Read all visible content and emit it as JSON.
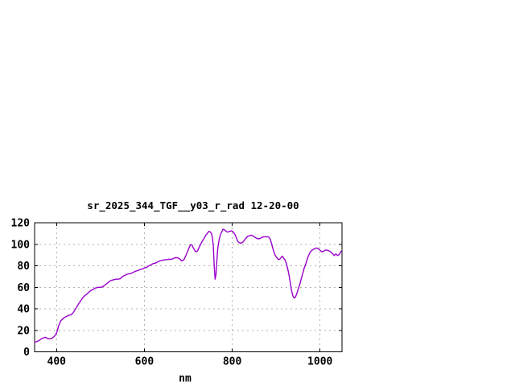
{
  "page": {
    "background": "#ffffff"
  },
  "chart_data": {
    "type": "line",
    "title": "sr_2025_344_TGF__y03_r_rad 12-20-00",
    "xlabel": "nm",
    "ylabel": "",
    "xlim": [
      350,
      1050
    ],
    "ylim": [
      0,
      120
    ],
    "x_ticks": [
      400,
      600,
      800,
      1000
    ],
    "y_ticks": [
      0,
      20,
      40,
      60,
      80,
      100,
      120
    ],
    "grid": true,
    "legend_position": "none",
    "colors": {
      "line": "#9a00cd",
      "grid": "#b0b0b0",
      "axis": "#000000",
      "text": "#000000",
      "background": "#ffffff"
    },
    "series": [
      {
        "name": "sr_2025_344_TGF__y03_r_rad",
        "points": [
          [
            350,
            9
          ],
          [
            355,
            9.5
          ],
          [
            360,
            10.5
          ],
          [
            365,
            12
          ],
          [
            370,
            13
          ],
          [
            375,
            13.5
          ],
          [
            379,
            12.5
          ],
          [
            384,
            12
          ],
          [
            389,
            12.5
          ],
          [
            394,
            14
          ],
          [
            398,
            16
          ],
          [
            401,
            18.5
          ],
          [
            404,
            23
          ],
          [
            407,
            26.5
          ],
          [
            410,
            29
          ],
          [
            414,
            30.5
          ],
          [
            418,
            32
          ],
          [
            423,
            33
          ],
          [
            428,
            34
          ],
          [
            433,
            34.5
          ],
          [
            437,
            36
          ],
          [
            441,
            38.5
          ],
          [
            445,
            41
          ],
          [
            450,
            44.5
          ],
          [
            455,
            47.5
          ],
          [
            460,
            50.5
          ],
          [
            465,
            52.5
          ],
          [
            470,
            54
          ],
          [
            475,
            56
          ],
          [
            480,
            57.5
          ],
          [
            485,
            58.5
          ],
          [
            490,
            59.5
          ],
          [
            495,
            60
          ],
          [
            500,
            60
          ],
          [
            505,
            60.5
          ],
          [
            510,
            62
          ],
          [
            515,
            63.5
          ],
          [
            520,
            65.5
          ],
          [
            525,
            66.5
          ],
          [
            530,
            67
          ],
          [
            535,
            67.5
          ],
          [
            540,
            67.5
          ],
          [
            545,
            68
          ],
          [
            550,
            70
          ],
          [
            555,
            71
          ],
          [
            560,
            72
          ],
          [
            565,
            72.5
          ],
          [
            570,
            73
          ],
          [
            575,
            74
          ],
          [
            580,
            75
          ],
          [
            585,
            75.5
          ],
          [
            590,
            76.5
          ],
          [
            595,
            77
          ],
          [
            600,
            78
          ],
          [
            605,
            78.5
          ],
          [
            610,
            80
          ],
          [
            615,
            81
          ],
          [
            620,
            82
          ],
          [
            625,
            82.5
          ],
          [
            630,
            83.5
          ],
          [
            635,
            84.5
          ],
          [
            640,
            85
          ],
          [
            645,
            85.5
          ],
          [
            650,
            85.5
          ],
          [
            655,
            86
          ],
          [
            660,
            86
          ],
          [
            665,
            86.5
          ],
          [
            670,
            87.5
          ],
          [
            675,
            87.5
          ],
          [
            680,
            86.5
          ],
          [
            685,
            84.5
          ],
          [
            690,
            85.5
          ],
          [
            694,
            89
          ],
          [
            698,
            93
          ],
          [
            702,
            97
          ],
          [
            705,
            99.5
          ],
          [
            708,
            99.5
          ],
          [
            711,
            97
          ],
          [
            715,
            94
          ],
          [
            718,
            93
          ],
          [
            721,
            94
          ],
          [
            724,
            96.5
          ],
          [
            728,
            100
          ],
          [
            732,
            103
          ],
          [
            736,
            105.5
          ],
          [
            740,
            108.5
          ],
          [
            744,
            110.5
          ],
          [
            747,
            112
          ],
          [
            750,
            111.5
          ],
          [
            753,
            110
          ],
          [
            755,
            106
          ],
          [
            757,
            98
          ],
          [
            759,
            80
          ],
          [
            761,
            67.5
          ],
          [
            763,
            72
          ],
          [
            765,
            85
          ],
          [
            767,
            96
          ],
          [
            770,
            104
          ],
          [
            773,
            108.5
          ],
          [
            776,
            111.5
          ],
          [
            779,
            114
          ],
          [
            782,
            113.5
          ],
          [
            785,
            112.5
          ],
          [
            788,
            111.5
          ],
          [
            791,
            111.5
          ],
          [
            794,
            112
          ],
          [
            798,
            112.5
          ],
          [
            801,
            112
          ],
          [
            804,
            110.5
          ],
          [
            807,
            108.5
          ],
          [
            810,
            105.5
          ],
          [
            813,
            102.5
          ],
          [
            816,
            101.5
          ],
          [
            820,
            101
          ],
          [
            824,
            102
          ],
          [
            828,
            104
          ],
          [
            832,
            106
          ],
          [
            836,
            107.5
          ],
          [
            840,
            108
          ],
          [
            844,
            108.5
          ],
          [
            848,
            107.5
          ],
          [
            852,
            106.5
          ],
          [
            856,
            105.5
          ],
          [
            860,
            105
          ],
          [
            864,
            105.5
          ],
          [
            868,
            106.5
          ],
          [
            872,
            107
          ],
          [
            876,
            107
          ],
          [
            880,
            107
          ],
          [
            884,
            106.5
          ],
          [
            887,
            104.5
          ],
          [
            890,
            100
          ],
          [
            893,
            95.5
          ],
          [
            896,
            91.5
          ],
          [
            899,
            89
          ],
          [
            902,
            87.5
          ],
          [
            905,
            86
          ],
          [
            908,
            86
          ],
          [
            911,
            87.5
          ],
          [
            914,
            89
          ],
          [
            917,
            87
          ],
          [
            920,
            85.5
          ],
          [
            923,
            82.5
          ],
          [
            926,
            78
          ],
          [
            929,
            72
          ],
          [
            932,
            65
          ],
          [
            935,
            57.5
          ],
          [
            938,
            52
          ],
          [
            941,
            50
          ],
          [
            944,
            51
          ],
          [
            947,
            54
          ],
          [
            950,
            58
          ],
          [
            953,
            61.5
          ],
          [
            956,
            66
          ],
          [
            960,
            72
          ],
          [
            964,
            78
          ],
          [
            968,
            82.5
          ],
          [
            972,
            87.5
          ],
          [
            976,
            91.5
          ],
          [
            980,
            94
          ],
          [
            984,
            95
          ],
          [
            988,
            96
          ],
          [
            992,
            96.5
          ],
          [
            996,
            96
          ],
          [
            1000,
            94.5
          ],
          [
            1004,
            93
          ],
          [
            1008,
            93.5
          ],
          [
            1012,
            94.5
          ],
          [
            1016,
            94.5
          ],
          [
            1020,
            94
          ],
          [
            1024,
            93
          ],
          [
            1028,
            91.5
          ],
          [
            1032,
            89.5
          ],
          [
            1036,
            91
          ],
          [
            1040,
            89.5
          ],
          [
            1044,
            90.5
          ],
          [
            1048,
            93.5
          ]
        ]
      }
    ]
  }
}
